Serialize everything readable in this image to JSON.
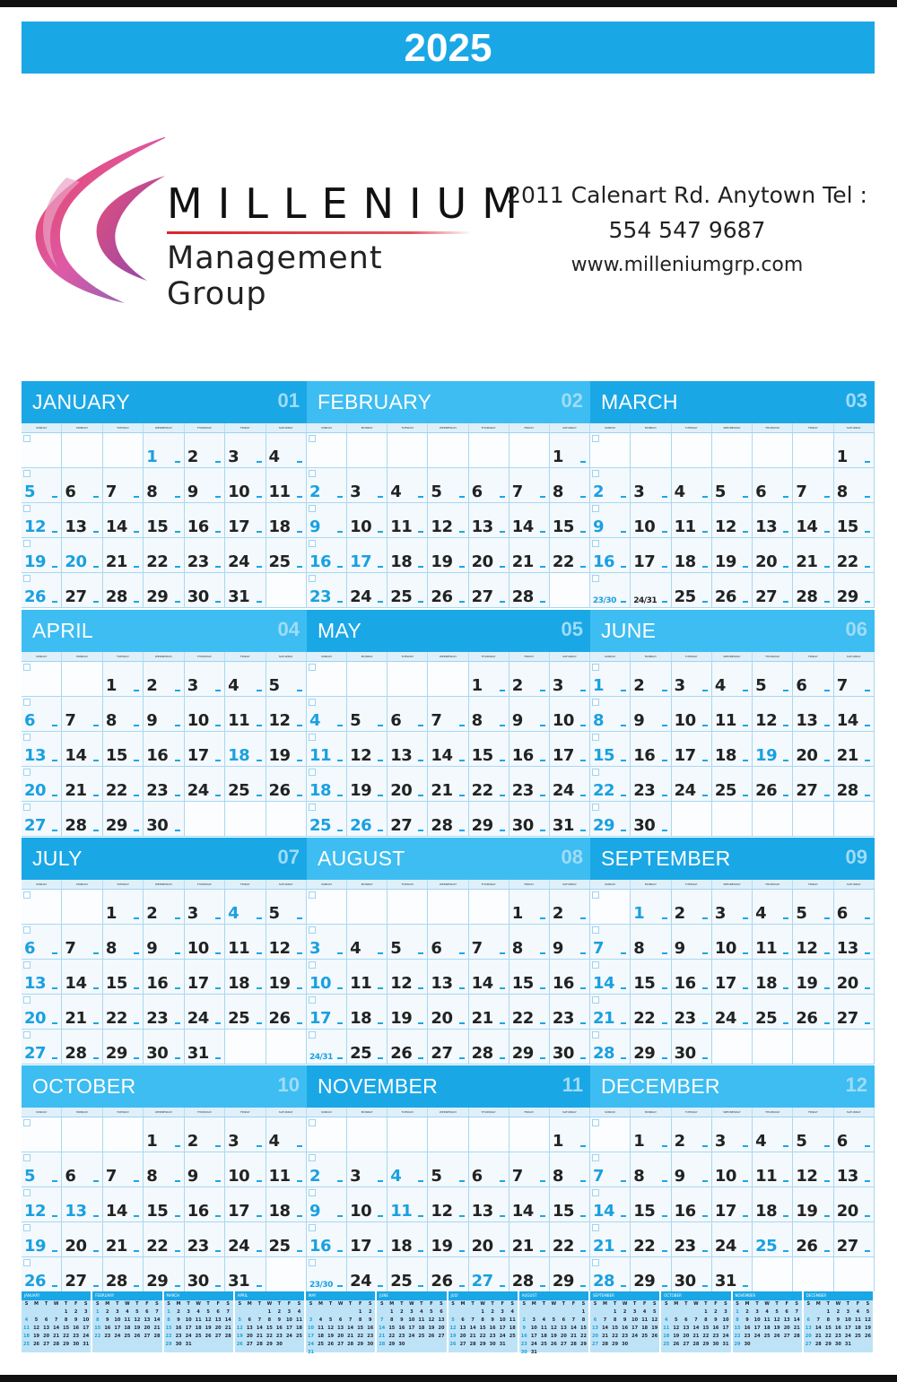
{
  "year": "2025",
  "company": {
    "name": "MILLENIUM",
    "tagline": "Management Group",
    "address_line": "2011 Calenart Rd. Anytown Tel :",
    "phone": "554 547 9687",
    "website": "www.milleniumgrp.com"
  },
  "colors": {
    "accent": "#1aa7e6",
    "accent_light": "#3dbdf1",
    "holiday_text": "#1aa0e0",
    "logo_red": "#e02a3c",
    "logo_purple": "#7a3fa8",
    "logo_pink": "#e04a9a"
  },
  "weekdays": [
    "SUNDAY",
    "MONDAY",
    "TUESDAY",
    "WEDNESDAY",
    "THURSDAY",
    "FRIDAY",
    "SATURDAY"
  ],
  "months": [
    {
      "name": "JANUARY",
      "num": "01",
      "blue": [
        "1",
        "20"
      ],
      "weeks": [
        [
          "",
          "",
          "",
          "1",
          "2",
          "3",
          "4"
        ],
        [
          "5",
          "6",
          "7",
          "8",
          "9",
          "10",
          "11"
        ],
        [
          "12",
          "13",
          "14",
          "15",
          "16",
          "17",
          "18"
        ],
        [
          "19",
          "20",
          "21",
          "22",
          "23",
          "24",
          "25"
        ],
        [
          "26",
          "27",
          "28",
          "29",
          "30",
          "31",
          ""
        ]
      ]
    },
    {
      "name": "FEBRUARY",
      "num": "02",
      "blue": [
        "17"
      ],
      "weeks": [
        [
          "",
          "",
          "",
          "",
          "",
          "",
          "1"
        ],
        [
          "2",
          "3",
          "4",
          "5",
          "6",
          "7",
          "8"
        ],
        [
          "9",
          "10",
          "11",
          "12",
          "13",
          "14",
          "15"
        ],
        [
          "16",
          "17",
          "18",
          "19",
          "20",
          "21",
          "22"
        ],
        [
          "23",
          "24",
          "25",
          "26",
          "27",
          "28",
          ""
        ]
      ]
    },
    {
      "name": "MARCH",
      "num": "03",
      "blue": [],
      "weeks": [
        [
          "",
          "",
          "",
          "",
          "",
          "",
          "1"
        ],
        [
          "2",
          "3",
          "4",
          "5",
          "6",
          "7",
          "8"
        ],
        [
          "9",
          "10",
          "11",
          "12",
          "13",
          "14",
          "15"
        ],
        [
          "16",
          "17",
          "18",
          "19",
          "20",
          "21",
          "22"
        ],
        [
          "23/30",
          "24/31",
          "25",
          "26",
          "27",
          "28",
          "29"
        ]
      ]
    },
    {
      "name": "APRIL",
      "num": "04",
      "blue": [
        "18"
      ],
      "weeks": [
        [
          "",
          "",
          "1",
          "2",
          "3",
          "4",
          "5"
        ],
        [
          "6",
          "7",
          "8",
          "9",
          "10",
          "11",
          "12"
        ],
        [
          "13",
          "14",
          "15",
          "16",
          "17",
          "18",
          "19"
        ],
        [
          "20",
          "21",
          "22",
          "23",
          "24",
          "25",
          "26"
        ],
        [
          "27",
          "28",
          "29",
          "30",
          "",
          "",
          ""
        ]
      ]
    },
    {
      "name": "MAY",
      "num": "05",
      "blue": [
        "26"
      ],
      "weeks": [
        [
          "",
          "",
          "",
          "",
          "1",
          "2",
          "3"
        ],
        [
          "4",
          "5",
          "6",
          "7",
          "8",
          "9",
          "10"
        ],
        [
          "11",
          "12",
          "13",
          "14",
          "15",
          "16",
          "17"
        ],
        [
          "18",
          "19",
          "20",
          "21",
          "22",
          "23",
          "24"
        ],
        [
          "25",
          "26",
          "27",
          "28",
          "29",
          "30",
          "31"
        ]
      ]
    },
    {
      "name": "JUNE",
      "num": "06",
      "blue": [
        "19"
      ],
      "weeks": [
        [
          "1",
          "2",
          "3",
          "4",
          "5",
          "6",
          "7"
        ],
        [
          "8",
          "9",
          "10",
          "11",
          "12",
          "13",
          "14"
        ],
        [
          "15",
          "16",
          "17",
          "18",
          "19",
          "20",
          "21"
        ],
        [
          "22",
          "23",
          "24",
          "25",
          "26",
          "27",
          "28"
        ],
        [
          "29",
          "30",
          "",
          "",
          "",
          "",
          ""
        ]
      ]
    },
    {
      "name": "JULY",
      "num": "07",
      "blue": [
        "4"
      ],
      "weeks": [
        [
          "",
          "",
          "1",
          "2",
          "3",
          "4",
          "5"
        ],
        [
          "6",
          "7",
          "8",
          "9",
          "10",
          "11",
          "12"
        ],
        [
          "13",
          "14",
          "15",
          "16",
          "17",
          "18",
          "19"
        ],
        [
          "20",
          "21",
          "22",
          "23",
          "24",
          "25",
          "26"
        ],
        [
          "27",
          "28",
          "29",
          "30",
          "31",
          "",
          ""
        ]
      ]
    },
    {
      "name": "AUGUST",
      "num": "08",
      "blue": [],
      "weeks": [
        [
          "",
          "",
          "",
          "",
          "",
          "1",
          "2"
        ],
        [
          "3",
          "4",
          "5",
          "6",
          "7",
          "8",
          "9"
        ],
        [
          "10",
          "11",
          "12",
          "13",
          "14",
          "15",
          "16"
        ],
        [
          "17",
          "18",
          "19",
          "20",
          "21",
          "22",
          "23"
        ],
        [
          "24/31",
          "25",
          "26",
          "27",
          "28",
          "29",
          "30"
        ]
      ]
    },
    {
      "name": "SEPTEMBER",
      "num": "09",
      "blue": [
        "1"
      ],
      "weeks": [
        [
          "",
          "1",
          "2",
          "3",
          "4",
          "5",
          "6"
        ],
        [
          "7",
          "8",
          "9",
          "10",
          "11",
          "12",
          "13"
        ],
        [
          "14",
          "15",
          "16",
          "17",
          "18",
          "19",
          "20"
        ],
        [
          "21",
          "22",
          "23",
          "24",
          "25",
          "26",
          "27"
        ],
        [
          "28",
          "29",
          "30",
          "",
          "",
          "",
          ""
        ]
      ]
    },
    {
      "name": "OCTOBER",
      "num": "10",
      "blue": [
        "13"
      ],
      "weeks": [
        [
          "",
          "",
          "",
          "1",
          "2",
          "3",
          "4"
        ],
        [
          "5",
          "6",
          "7",
          "8",
          "9",
          "10",
          "11"
        ],
        [
          "12",
          "13",
          "14",
          "15",
          "16",
          "17",
          "18"
        ],
        [
          "19",
          "20",
          "21",
          "22",
          "23",
          "24",
          "25"
        ],
        [
          "26",
          "27",
          "28",
          "29",
          "30",
          "31",
          ""
        ]
      ]
    },
    {
      "name": "NOVEMBER",
      "num": "11",
      "blue": [
        "4",
        "11",
        "27"
      ],
      "weeks": [
        [
          "",
          "",
          "",
          "",
          "",
          "",
          "1"
        ],
        [
          "2",
          "3",
          "4",
          "5",
          "6",
          "7",
          "8"
        ],
        [
          "9",
          "10",
          "11",
          "12",
          "13",
          "14",
          "15"
        ],
        [
          "16",
          "17",
          "18",
          "19",
          "20",
          "21",
          "22"
        ],
        [
          "23/30",
          "24",
          "25",
          "26",
          "27",
          "28",
          "29"
        ]
      ]
    },
    {
      "name": "DECEMBER",
      "num": "12",
      "blue": [
        "25"
      ],
      "weeks": [
        [
          "",
          "1",
          "2",
          "3",
          "4",
          "5",
          "6"
        ],
        [
          "7",
          "8",
          "9",
          "10",
          "11",
          "12",
          "13"
        ],
        [
          "14",
          "15",
          "16",
          "17",
          "18",
          "19",
          "20"
        ],
        [
          "21",
          "22",
          "23",
          "24",
          "25",
          "26",
          "27"
        ],
        [
          "28",
          "29",
          "30",
          "31",
          "",
          "",
          ""
        ]
      ]
    }
  ],
  "mini_year": {
    "weekday_letters": [
      "S",
      "M",
      "T",
      "W",
      "T",
      "F",
      "S"
    ],
    "months": [
      {
        "name": "JANUARY",
        "start": 4,
        "days": 31
      },
      {
        "name": "FEBRUARY",
        "start": 0,
        "days": 28
      },
      {
        "name": "MARCH",
        "start": 0,
        "days": 31
      },
      {
        "name": "APRIL",
        "start": 3,
        "days": 30
      },
      {
        "name": "MAY",
        "start": 5,
        "days": 31
      },
      {
        "name": "JUNE",
        "start": 1,
        "days": 30
      },
      {
        "name": "JULY",
        "start": 3,
        "days": 31
      },
      {
        "name": "AUGUST",
        "start": 6,
        "days": 31
      },
      {
        "name": "SEPTEMBER",
        "start": 2,
        "days": 30
      },
      {
        "name": "OCTOBER",
        "start": 4,
        "days": 31
      },
      {
        "name": "NOVEMBER",
        "start": 0,
        "days": 30
      },
      {
        "name": "DECEMBER",
        "start": 2,
        "days": 31
      }
    ]
  }
}
